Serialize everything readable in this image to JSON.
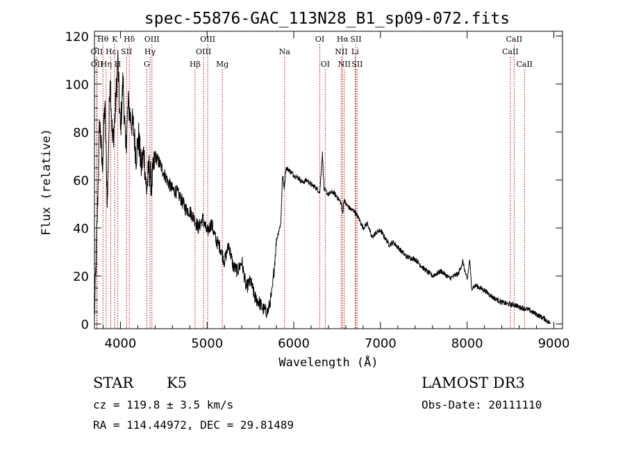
{
  "chart_data": {
    "type": "line",
    "title": "spec-55876-GAC_113N28_B1_sp09-072.fits",
    "xlabel": "Wavelength (Å)",
    "ylabel": "Flux (relative)",
    "xlim": [
      3700,
      9100
    ],
    "ylim": [
      -2,
      122
    ],
    "xticks": [
      4000,
      5000,
      6000,
      7000,
      8000,
      9000
    ],
    "yticks": [
      0,
      20,
      40,
      60,
      80,
      100,
      120
    ],
    "series": [
      {
        "name": "flux",
        "x": [
          3700,
          3730,
          3760,
          3790,
          3820,
          3850,
          3880,
          3910,
          3940,
          3970,
          4000,
          4030,
          4060,
          4090,
          4120,
          4150,
          4180,
          4210,
          4240,
          4270,
          4300,
          4330,
          4360,
          4400,
          4450,
          4500,
          4550,
          4600,
          4650,
          4700,
          4750,
          4800,
          4850,
          4900,
          4950,
          5000,
          5050,
          5100,
          5150,
          5200,
          5250,
          5300,
          5350,
          5400,
          5450,
          5500,
          5550,
          5600,
          5650,
          5700,
          5750,
          5800,
          5850,
          5870,
          5890,
          5910,
          5950,
          6000,
          6050,
          6100,
          6150,
          6200,
          6250,
          6300,
          6330,
          6350,
          6400,
          6450,
          6500,
          6550,
          6563,
          6580,
          6600,
          6650,
          6700,
          6750,
          6800,
          6850,
          6900,
          6950,
          7000,
          7050,
          7100,
          7150,
          7200,
          7250,
          7300,
          7400,
          7500,
          7600,
          7700,
          7800,
          7900,
          7950,
          8000,
          8030,
          8050,
          8100,
          8200,
          8300,
          8400,
          8500,
          8550,
          8600,
          8700,
          8800,
          8900,
          8960
        ],
        "y": [
          3,
          40,
          85,
          65,
          92,
          50,
          105,
          75,
          88,
          110,
          80,
          102,
          72,
          92,
          85,
          82,
          70,
          78,
          65,
          72,
          55,
          65,
          58,
          70,
          67,
          63,
          59,
          56,
          55,
          52,
          48,
          47,
          44,
          40,
          44,
          38,
          42,
          35,
          32,
          26,
          33,
          24,
          22,
          26,
          15,
          18,
          11,
          9,
          6,
          5,
          13,
          35,
          42,
          62,
          57,
          65,
          64,
          62,
          61,
          59,
          60,
          58,
          57,
          55,
          71,
          56,
          54,
          55,
          53,
          50,
          46,
          52,
          50,
          48,
          47,
          44,
          40,
          42,
          36,
          38,
          39,
          36,
          33,
          34,
          32,
          30,
          28,
          27,
          23,
          20,
          22,
          19,
          21,
          26,
          18,
          27,
          15,
          16,
          14,
          11,
          9,
          8,
          8,
          7,
          6,
          4,
          2,
          0
        ]
      }
    ],
    "annotations": {
      "lines": [
        {
          "label": "OII",
          "x": 3727,
          "row": 2
        },
        {
          "label": "OII",
          "x": 3729,
          "row": 3
        },
        {
          "label": "Hθ",
          "x": 3798,
          "row": 1
        },
        {
          "label": "Hη",
          "x": 3835,
          "row": 3
        },
        {
          "label": "Hε",
          "x": 3889,
          "row": 2
        },
        {
          "label": "K",
          "x": 3934,
          "row": 1
        },
        {
          "label": "H",
          "x": 3969,
          "row": 3
        },
        {
          "label": "SII",
          "x": 4070,
          "row": 2
        },
        {
          "label": "Hδ",
          "x": 4102,
          "row": 1
        },
        {
          "label": "G",
          "x": 4304,
          "row": 3
        },
        {
          "label": "Hγ",
          "x": 4341,
          "row": 2
        },
        {
          "label": "OIII",
          "x": 4363,
          "row": 1
        },
        {
          "label": "Hβ",
          "x": 4861,
          "row": 3
        },
        {
          "label": "OIII",
          "x": 4959,
          "row": 2
        },
        {
          "label": "OIII",
          "x": 5007,
          "row": 1
        },
        {
          "label": "Mg",
          "x": 5175,
          "row": 3
        },
        {
          "label": "Na",
          "x": 5894,
          "row": 2
        },
        {
          "label": "OI",
          "x": 6300,
          "row": 1
        },
        {
          "label": "OI",
          "x": 6363,
          "row": 3
        },
        {
          "label": "NII",
          "x": 6548,
          "row": 2
        },
        {
          "label": "Hα",
          "x": 6563,
          "row": 1
        },
        {
          "label": "NII",
          "x": 6583,
          "row": 3
        },
        {
          "label": "Li",
          "x": 6707,
          "row": 2
        },
        {
          "label": "SII",
          "x": 6716,
          "row": 1
        },
        {
          "label": "SII",
          "x": 6731,
          "row": 3
        },
        {
          "label": "CaII",
          "x": 8498,
          "row": 2
        },
        {
          "label": "CaII",
          "x": 8542,
          "row": 1
        },
        {
          "label": "CaII",
          "x": 8662,
          "row": 3
        }
      ]
    }
  },
  "info": {
    "classification": "STAR",
    "subclass": "K5",
    "survey": "LAMOST DR3",
    "velocity": "cz = 119.8 ± 3.5 km/s",
    "obs_date": "Obs-Date: 20111110",
    "coords": "RA = 114.44972, DEC =  29.81489"
  },
  "colors": {
    "line_marker": "#b00000",
    "spectrum": "#000000",
    "axes": "#000000"
  }
}
